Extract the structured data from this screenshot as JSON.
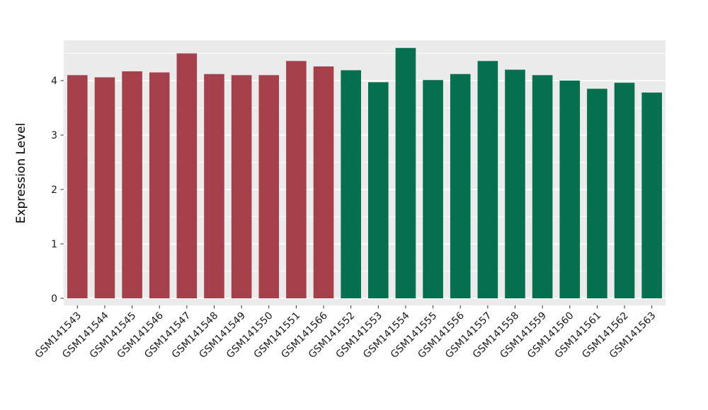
{
  "page": {
    "background": "#FFFFFF"
  },
  "chart_data": {
    "type": "bar",
    "title": "",
    "xlabel": "",
    "ylabel": "Expression Level",
    "categories": [
      "GSM141543",
      "GSM141544",
      "GSM141545",
      "GSM141546",
      "GSM141547",
      "GSM141548",
      "GSM141549",
      "GSM141550",
      "GSM141551",
      "GSM141566",
      "GSM141552",
      "GSM141553",
      "GSM141554",
      "GSM141555",
      "GSM141556",
      "GSM141557",
      "GSM141558",
      "GSM141559",
      "GSM141560",
      "GSM141561",
      "GSM141562",
      "GSM141563"
    ],
    "values": [
      4.1,
      4.06,
      4.17,
      4.15,
      4.5,
      4.12,
      4.1,
      4.1,
      4.36,
      4.26,
      4.19,
      3.97,
      4.6,
      4.01,
      4.12,
      4.36,
      4.2,
      4.1,
      4.0,
      3.85,
      3.96,
      3.78
    ],
    "bar_colors": [
      "#A5414D",
      "#A5414D",
      "#A5414D",
      "#A5414D",
      "#A5414D",
      "#A5414D",
      "#A5414D",
      "#A5414D",
      "#A5414D",
      "#A5414D",
      "#056F4F",
      "#056F4F",
      "#056F4F",
      "#056F4F",
      "#056F4F",
      "#056F4F",
      "#056F4F",
      "#056F4F",
      "#056F4F",
      "#056F4F",
      "#056F4F",
      "#056F4F"
    ],
    "group_colors": {
      "left_group": "#A5414D",
      "right_group": "#056F4F"
    },
    "ylim": [
      0,
      4.77
    ],
    "yticks": [
      0,
      1,
      2,
      3,
      4
    ],
    "minor_gridlines": [
      0.5,
      1.5,
      2.5,
      3.5,
      4.5
    ],
    "grid": true,
    "legend_position": "none",
    "panel_background": "#EBEBEB",
    "gridline_color": "#FFFFFF",
    "tick_color": "#333333",
    "label_color": "#1A1A1A"
  }
}
